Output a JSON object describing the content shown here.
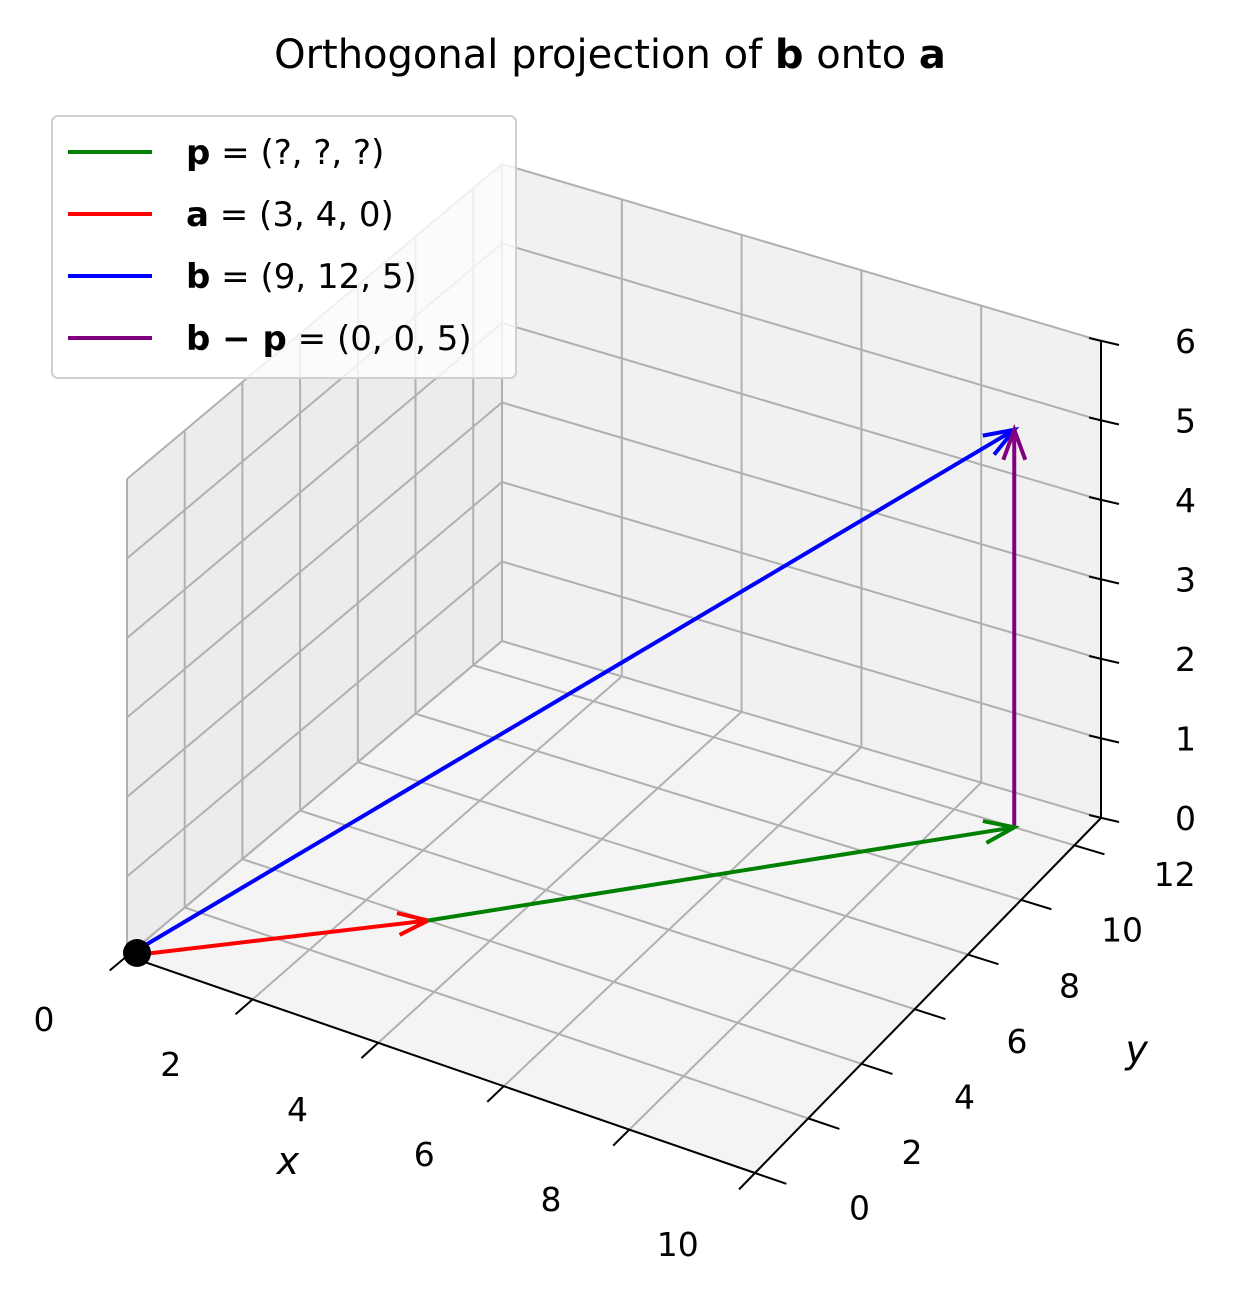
{
  "chart_data": {
    "type": "3d-quiver",
    "title": {
      "prefix": "Orthogonal projection of ",
      "vec1": "b",
      "middle": " onto ",
      "vec2": "a"
    },
    "xlabel": "x",
    "ylabel": "y",
    "zlabel": "",
    "xlim": [
      0,
      10
    ],
    "ylim": [
      0,
      13
    ],
    "zlim": [
      0,
      6
    ],
    "xticks": [
      "0",
      "2",
      "4",
      "6",
      "8",
      "10"
    ],
    "yticks": [
      "0",
      "2",
      "4",
      "6",
      "8",
      "10",
      "12"
    ],
    "zticks": [
      "0",
      "1",
      "2",
      "3",
      "4",
      "5",
      "6"
    ],
    "grid": true,
    "legend_position": "top-left",
    "origin_point": [
      0,
      0,
      0
    ],
    "series": [
      {
        "name_bold": "p",
        "name_rest": " = (?, ?, ?)",
        "color": "#008000",
        "start": [
          3,
          4,
          0
        ],
        "end": [
          9,
          12,
          0
        ]
      },
      {
        "name_bold": "a",
        "name_rest": " = (3, 4, 0)",
        "color": "#ff0000",
        "start": [
          0,
          0,
          0
        ],
        "end": [
          3,
          4,
          0
        ]
      },
      {
        "name_bold": "b",
        "name_rest": " = (9, 12, 5)",
        "color": "#0000ff",
        "start": [
          0,
          0,
          0
        ],
        "end": [
          9,
          12,
          5
        ]
      },
      {
        "name_bold": "b − p",
        "name_rest": " = (0, 0, 5)",
        "color": "#800080",
        "start": [
          9,
          12,
          0
        ],
        "end": [
          9,
          12,
          5
        ]
      }
    ]
  }
}
